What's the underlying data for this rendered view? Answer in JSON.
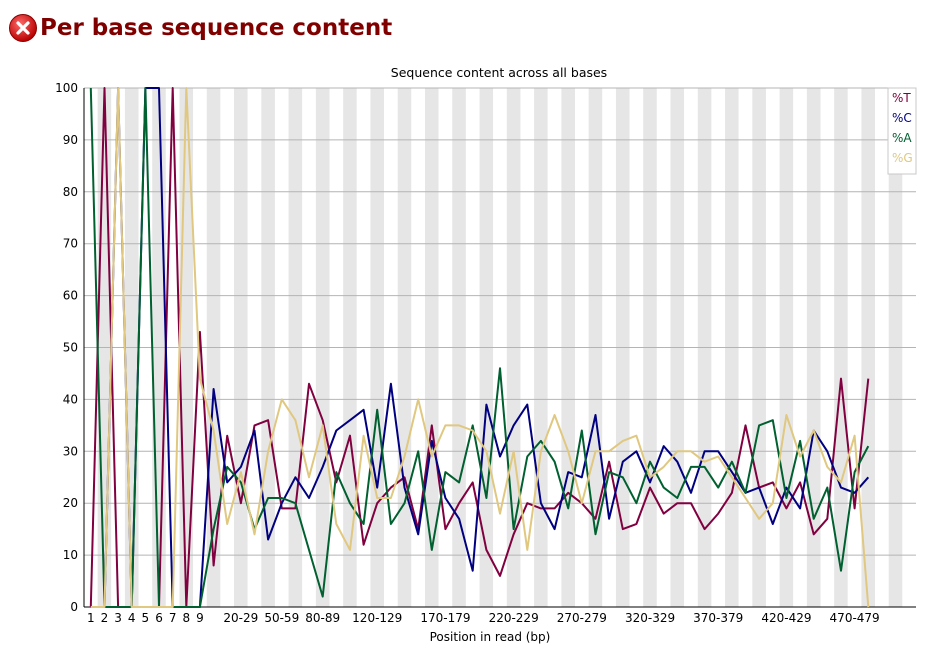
{
  "page_title": "Per base sequence content",
  "status": {
    "icon": "fail-icon",
    "color": "#cc0000"
  },
  "chart_data": {
    "type": "line",
    "title": "Sequence content across all bases",
    "xlabel": "Position in read (bp)",
    "ylabel": "",
    "ylim": [
      0,
      100
    ],
    "yticks": [
      0,
      10,
      20,
      30,
      40,
      50,
      60,
      70,
      80,
      90,
      100
    ],
    "grid": true,
    "legend_position": "top-right",
    "categories": [
      "1",
      "2",
      "3",
      "4",
      "5",
      "6",
      "7",
      "8",
      "9",
      "10-14",
      "15-19",
      "20-29",
      "30-39",
      "40-49",
      "50-59",
      "60-69",
      "70-79",
      "80-89",
      "90-99",
      "100-109",
      "110-119",
      "120-129",
      "130-139",
      "140-149",
      "150-159",
      "160-169",
      "170-179",
      "180-189",
      "190-199",
      "200-209",
      "210-219",
      "220-229",
      "230-239",
      "240-249",
      "250-259",
      "260-269",
      "270-279",
      "280-289",
      "290-299",
      "300-309",
      "310-319",
      "320-329",
      "330-339",
      "340-349",
      "350-359",
      "360-369",
      "370-379",
      "380-389",
      "390-399",
      "400-409",
      "410-419",
      "420-429",
      "430-439",
      "440-449",
      "450-459",
      "460-469",
      "470-479",
      "480-489",
      "490-499",
      "500-509",
      "510-519"
    ],
    "x_tick_labels_shown": [
      "1",
      "2",
      "3",
      "4",
      "5",
      "6",
      "7",
      "8",
      "9",
      "20-29",
      "50-59",
      "80-89",
      "120-129",
      "170-179",
      "220-229",
      "270-279",
      "320-329",
      "370-379",
      "420-429",
      "470-479"
    ],
    "series": [
      {
        "name": "%T",
        "color": "#800040",
        "values": [
          0,
          100,
          0,
          0,
          0,
          0,
          100,
          0,
          53,
          8,
          33,
          20,
          35,
          36,
          19,
          19,
          43,
          36,
          24,
          33,
          12,
          20,
          23,
          25,
          15,
          35,
          15,
          20,
          24,
          11,
          6,
          14,
          20,
          19,
          19,
          22,
          20,
          17,
          28,
          15,
          16,
          23,
          18,
          20,
          20,
          15,
          18,
          22,
          35,
          23,
          24,
          19,
          24,
          14,
          17,
          44,
          19,
          44,
          null,
          null,
          null
        ]
      },
      {
        "name": "%C",
        "color": "#000080",
        "values": [
          0,
          0,
          100,
          0,
          100,
          100,
          0,
          0,
          0,
          42,
          24,
          27,
          34,
          13,
          20,
          25,
          21,
          27,
          34,
          36,
          38,
          23,
          43,
          23,
          14,
          32,
          21,
          17,
          7,
          39,
          29,
          35,
          39,
          20,
          15,
          26,
          25,
          37,
          17,
          28,
          30,
          24,
          31,
          28,
          22,
          30,
          30,
          26,
          22,
          23,
          16,
          23,
          19,
          34,
          30,
          23,
          22,
          25,
          null,
          null,
          null
        ]
      },
      {
        "name": "%A",
        "color": "#006030",
        "values": [
          100,
          0,
          0,
          0,
          100,
          0,
          0,
          0,
          0,
          15,
          27,
          24,
          15,
          21,
          21,
          20,
          11,
          2,
          26,
          20,
          16,
          38,
          16,
          20,
          30,
          11,
          26,
          24,
          35,
          21,
          46,
          15,
          29,
          32,
          28,
          19,
          34,
          14,
          26,
          25,
          20,
          28,
          23,
          21,
          27,
          27,
          23,
          28,
          22,
          35,
          36,
          21,
          32,
          17,
          23,
          7,
          26,
          31,
          null,
          null,
          null
        ]
      },
      {
        "name": "%G",
        "color": "#e0c880",
        "values": [
          0,
          0,
          100,
          0,
          0,
          0,
          0,
          100,
          44,
          34,
          16,
          26,
          14,
          30,
          40,
          36,
          25,
          35,
          16,
          11,
          33,
          21,
          21,
          29,
          40,
          29,
          35,
          35,
          34,
          30,
          18,
          30,
          11,
          30,
          37,
          30,
          20,
          30,
          30,
          32,
          33,
          25,
          27,
          30,
          30,
          28,
          29,
          25,
          21,
          17,
          20,
          37,
          29,
          34,
          27,
          24,
          33,
          0,
          null,
          null,
          null
        ]
      }
    ]
  }
}
